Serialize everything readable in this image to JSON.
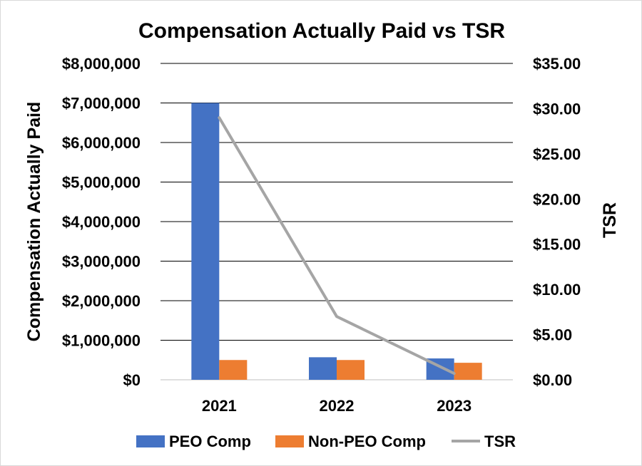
{
  "chart_data": {
    "type": "bar",
    "title": "Compensation Actually Paid vs TSR",
    "categories": [
      "2021",
      "2022",
      "2023"
    ],
    "series": [
      {
        "name": "PEO Comp",
        "type": "bar",
        "axis": "left",
        "color": "#4472c4",
        "values": [
          7000000,
          570000,
          540000
        ]
      },
      {
        "name": "Non-PEO Comp",
        "type": "bar",
        "axis": "left",
        "color": "#ed7d31",
        "values": [
          500000,
          500000,
          430000
        ]
      },
      {
        "name": "TSR",
        "type": "line",
        "axis": "right",
        "color": "#a5a5a5",
        "values": [
          29.0,
          7.0,
          0.7
        ]
      }
    ],
    "ylabel": "Compensation Actually Paid",
    "y2label": "TSR",
    "ylim": [
      0,
      8000000
    ],
    "y2lim": [
      0,
      35
    ],
    "yticks": [
      "$0",
      "$1,000,000",
      "$2,000,000",
      "$3,000,000",
      "$4,000,000",
      "$5,000,000",
      "$6,000,000",
      "$7,000,000",
      "$8,000,000"
    ],
    "y2ticks": [
      "$0.00",
      "$5.00",
      "$10.00",
      "$15.00",
      "$20.00",
      "$25.00",
      "$30.00",
      "$35.00"
    ],
    "grid": true,
    "legend": "bottom"
  }
}
